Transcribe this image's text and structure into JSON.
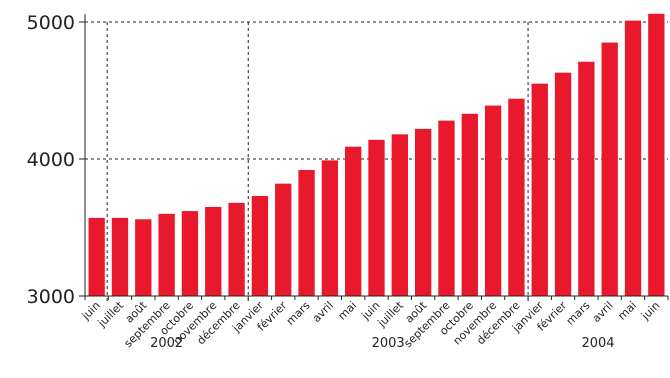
{
  "chart_data": {
    "type": "bar",
    "title": "",
    "xlabel": "",
    "ylabel": "",
    "ylim": [
      3000,
      5000
    ],
    "y_ticks": [
      "3000",
      "4000",
      "5000"
    ],
    "grid": "dashed horizontal lines at 4000 and 5000; dashed vertical separators between years",
    "bar_color": "#e8192c",
    "categories": [
      "juin",
      "juillet",
      "août",
      "septembre",
      "octobre",
      "novembre",
      "décembre",
      "janvier",
      "février",
      "mars",
      "avril",
      "mai",
      "juin",
      "juillet",
      "août",
      "septembre",
      "octobre",
      "novembre",
      "décembre",
      "janvier",
      "février",
      "mars",
      "avril",
      "mai",
      "juin"
    ],
    "values": [
      3570,
      3570,
      3560,
      3600,
      3620,
      3650,
      3680,
      3730,
      3820,
      3920,
      3990,
      4090,
      4140,
      4180,
      4220,
      4280,
      4330,
      4390,
      4440,
      4550,
      4630,
      4710,
      4850,
      5010,
      5060
    ],
    "year_groups": [
      {
        "label": "2002",
        "start": 0,
        "end": 6
      },
      {
        "label": "2003",
        "start": 7,
        "end": 18
      },
      {
        "label": "2004",
        "start": 19,
        "end": 24
      }
    ]
  }
}
